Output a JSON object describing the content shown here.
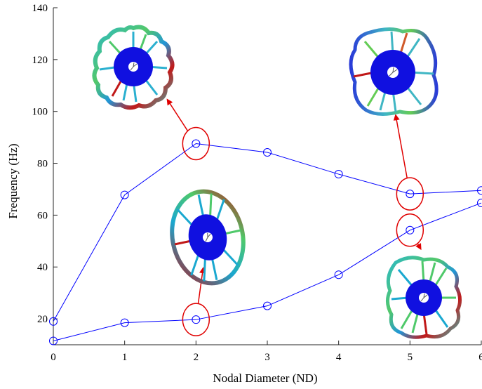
{
  "chart_data": {
    "type": "line",
    "title": "",
    "xlabel": "Nodal Diameter (ND)",
    "ylabel": "Frequency (Hz)",
    "x_ticks": [
      "0",
      "1",
      "2",
      "3",
      "4",
      "5",
      "6"
    ],
    "y_ticks": [
      "20",
      "40",
      "60",
      "80",
      "100",
      "120",
      "140"
    ],
    "xlim": [
      0,
      6
    ],
    "ylim": [
      10,
      140
    ],
    "grid": false,
    "legend": "none",
    "series": [
      {
        "color": "#0000ff",
        "marker": "open-circle",
        "x": [
          0,
          1,
          2,
          3,
          4,
          5,
          6
        ],
        "y": [
          19,
          67.8,
          87.6,
          84.2,
          75.8,
          68.2,
          69.5
        ]
      },
      {
        "color": "#0000ff",
        "marker": "open-circle",
        "x": [
          0,
          1,
          2,
          3,
          4,
          5,
          6
        ],
        "y": [
          11.5,
          18.5,
          19.7,
          25,
          37,
          54.2,
          64.7
        ]
      }
    ],
    "annotations": [
      {
        "type": "ellipse",
        "color": "#e00000",
        "at": {
          "x": 2,
          "y": 87.6
        },
        "arrow_to": {
          "x": 1.6,
          "y": 104.5
        },
        "points_to": "mode-shape-image"
      },
      {
        "type": "ellipse",
        "color": "#e00000",
        "at": {
          "x": 5,
          "y": 68.2
        },
        "arrow_to": {
          "x": 4.8,
          "y": 98.5
        },
        "points_to": "mode-shape-image"
      },
      {
        "type": "ellipse",
        "color": "#e00000",
        "at": {
          "x": 2,
          "y": 19.7
        },
        "arrow_to": {
          "x": 2.1,
          "y": 39.5
        },
        "points_to": "mode-shape-image"
      },
      {
        "type": "ellipse",
        "color": "#e00000",
        "at": {
          "x": 5,
          "y": 54.2
        },
        "arrow_to": {
          "x": 5.15,
          "y": 47
        },
        "points_to": "mode-shape-image"
      }
    ],
    "colors": {
      "line": "#0000ff",
      "annotation": "#e00000",
      "hub": "#1010e0",
      "contour_low": "#1aa8d0",
      "contour_mid": "#4cc870",
      "contour_high": "#c01818"
    }
  }
}
